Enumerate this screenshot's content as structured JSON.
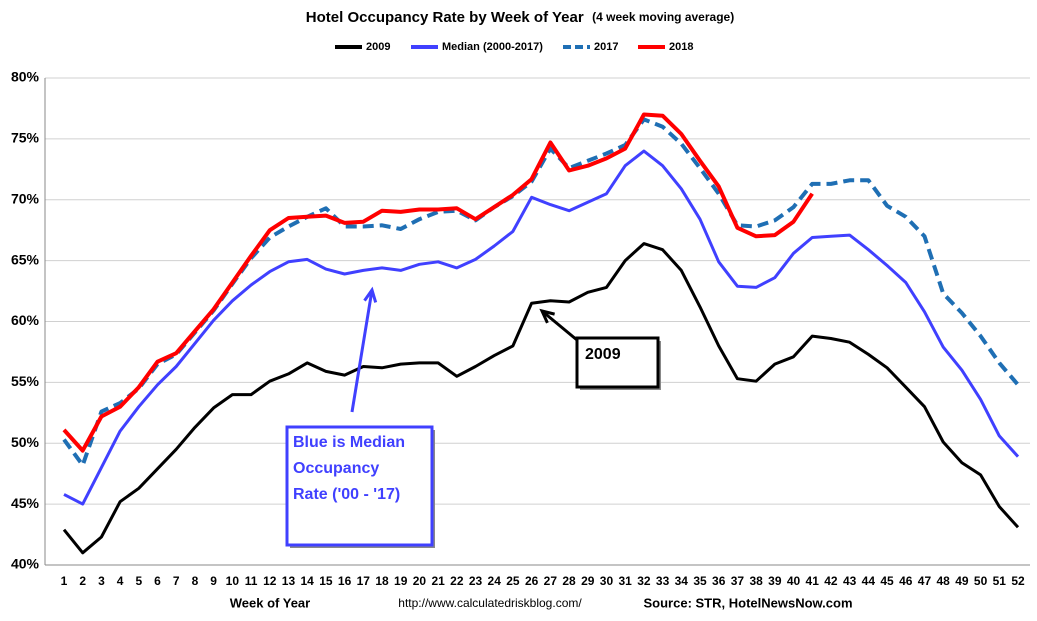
{
  "chart_data": {
    "type": "line",
    "title": "Hotel Occupancy Rate by  Week of Year",
    "subtitle": "(4 week moving average)",
    "x_label": "Week of Year",
    "url": "http://www.calculatedriskblog.com/",
    "source": "Source: STR, HotelNewsNow.com",
    "categories": [
      "1",
      "2",
      "3",
      "4",
      "5",
      "6",
      "7",
      "8",
      "9",
      "10",
      "11",
      "12",
      "13",
      "14",
      "15",
      "16",
      "17",
      "18",
      "19",
      "20",
      "21",
      "22",
      "23",
      "24",
      "25",
      "26",
      "27",
      "28",
      "29",
      "30",
      "31",
      "32",
      "33",
      "34",
      "35",
      "36",
      "37",
      "38",
      "39",
      "40",
      "41",
      "42",
      "43",
      "44",
      "45",
      "46",
      "47",
      "48",
      "49",
      "50",
      "51",
      "52"
    ],
    "ylim": [
      40,
      80
    ],
    "yticks": [
      {
        "value": 40,
        "label": "40%"
      },
      {
        "value": 45,
        "label": "45%"
      },
      {
        "value": 50,
        "label": "50%"
      },
      {
        "value": 55,
        "label": "55%"
      },
      {
        "value": 60,
        "label": "60%"
      },
      {
        "value": 65,
        "label": "65%"
      },
      {
        "value": 70,
        "label": "70%"
      },
      {
        "value": 75,
        "label": "75%"
      },
      {
        "value": 80,
        "label": "80%"
      }
    ],
    "grid": true,
    "series": [
      {
        "name": "2009",
        "color": "#000000",
        "dashed": false,
        "values": [
          42.9,
          41.0,
          42.3,
          45.2,
          46.3,
          47.9,
          49.5,
          51.3,
          52.9,
          54.0,
          54.0,
          55.1,
          55.7,
          56.6,
          55.9,
          55.6,
          56.3,
          56.2,
          56.5,
          56.6,
          56.6,
          55.5,
          56.3,
          57.2,
          58.0,
          61.5,
          61.7,
          61.6,
          62.4,
          62.8,
          65.0,
          66.4,
          65.9,
          64.2,
          61.2,
          58.0,
          55.3,
          55.1,
          56.5,
          57.1,
          58.8,
          58.6,
          58.3,
          57.3,
          56.2,
          54.6,
          53.0,
          50.1,
          48.4,
          47.4,
          44.8,
          43.1
        ]
      },
      {
        "name": "Median (2000-2017)",
        "color": "#4040ff",
        "dashed": false,
        "values": [
          45.8,
          45.0,
          48.0,
          51.0,
          53.0,
          54.8,
          56.3,
          58.2,
          60.1,
          61.7,
          63.0,
          64.1,
          64.9,
          65.1,
          64.3,
          63.9,
          64.2,
          64.4,
          64.2,
          64.7,
          64.9,
          64.4,
          65.1,
          66.2,
          67.4,
          70.2,
          69.6,
          69.1,
          69.8,
          70.5,
          72.8,
          74.0,
          72.8,
          70.9,
          68.4,
          64.9,
          62.9,
          62.8,
          63.6,
          65.6,
          66.9,
          67.0,
          67.1,
          65.9,
          64.6,
          63.2,
          60.8,
          57.9,
          56.0,
          53.6,
          50.6,
          48.9
        ]
      },
      {
        "name": "2017",
        "color": "#1f6fb4",
        "dashed": true,
        "values": [
          50.3,
          48.2,
          52.6,
          53.3,
          54.5,
          56.5,
          57.3,
          59.1,
          60.9,
          63.1,
          65.2,
          66.9,
          67.8,
          68.6,
          69.3,
          67.8,
          67.8,
          67.9,
          67.6,
          68.4,
          69.0,
          69.1,
          68.3,
          69.4,
          70.3,
          71.5,
          74.2,
          72.6,
          73.2,
          73.8,
          74.5,
          76.6,
          76.0,
          74.6,
          72.6,
          70.5,
          67.9,
          67.8,
          68.3,
          69.4,
          71.3,
          71.3,
          71.6,
          71.6,
          69.5,
          68.6,
          67.0,
          62.3,
          60.7,
          58.8,
          56.6,
          54.8
        ]
      },
      {
        "name": "2018",
        "color": "#ff0000",
        "dashed": false,
        "values": [
          51.1,
          49.4,
          52.2,
          53.0,
          54.6,
          56.7,
          57.4,
          59.2,
          61.0,
          63.2,
          65.4,
          67.5,
          68.5,
          68.6,
          68.7,
          68.1,
          68.2,
          69.1,
          69.0,
          69.2,
          69.2,
          69.3,
          68.4,
          69.4,
          70.4,
          71.7,
          74.7,
          72.4,
          72.8,
          73.4,
          74.2,
          77.0,
          76.9,
          75.4,
          73.2,
          71.1,
          67.7,
          67.0,
          67.1,
          68.2,
          70.5,
          null,
          null,
          null,
          null,
          null,
          null,
          null,
          null,
          null,
          null,
          null
        ]
      }
    ],
    "annotations": [
      {
        "lines": [
          "Blue is Median",
          "Occupancy",
          "Rate ('00 - '17)"
        ],
        "color": "#4040ff"
      },
      {
        "lines": [
          "2009"
        ],
        "color": "#000000"
      }
    ]
  }
}
